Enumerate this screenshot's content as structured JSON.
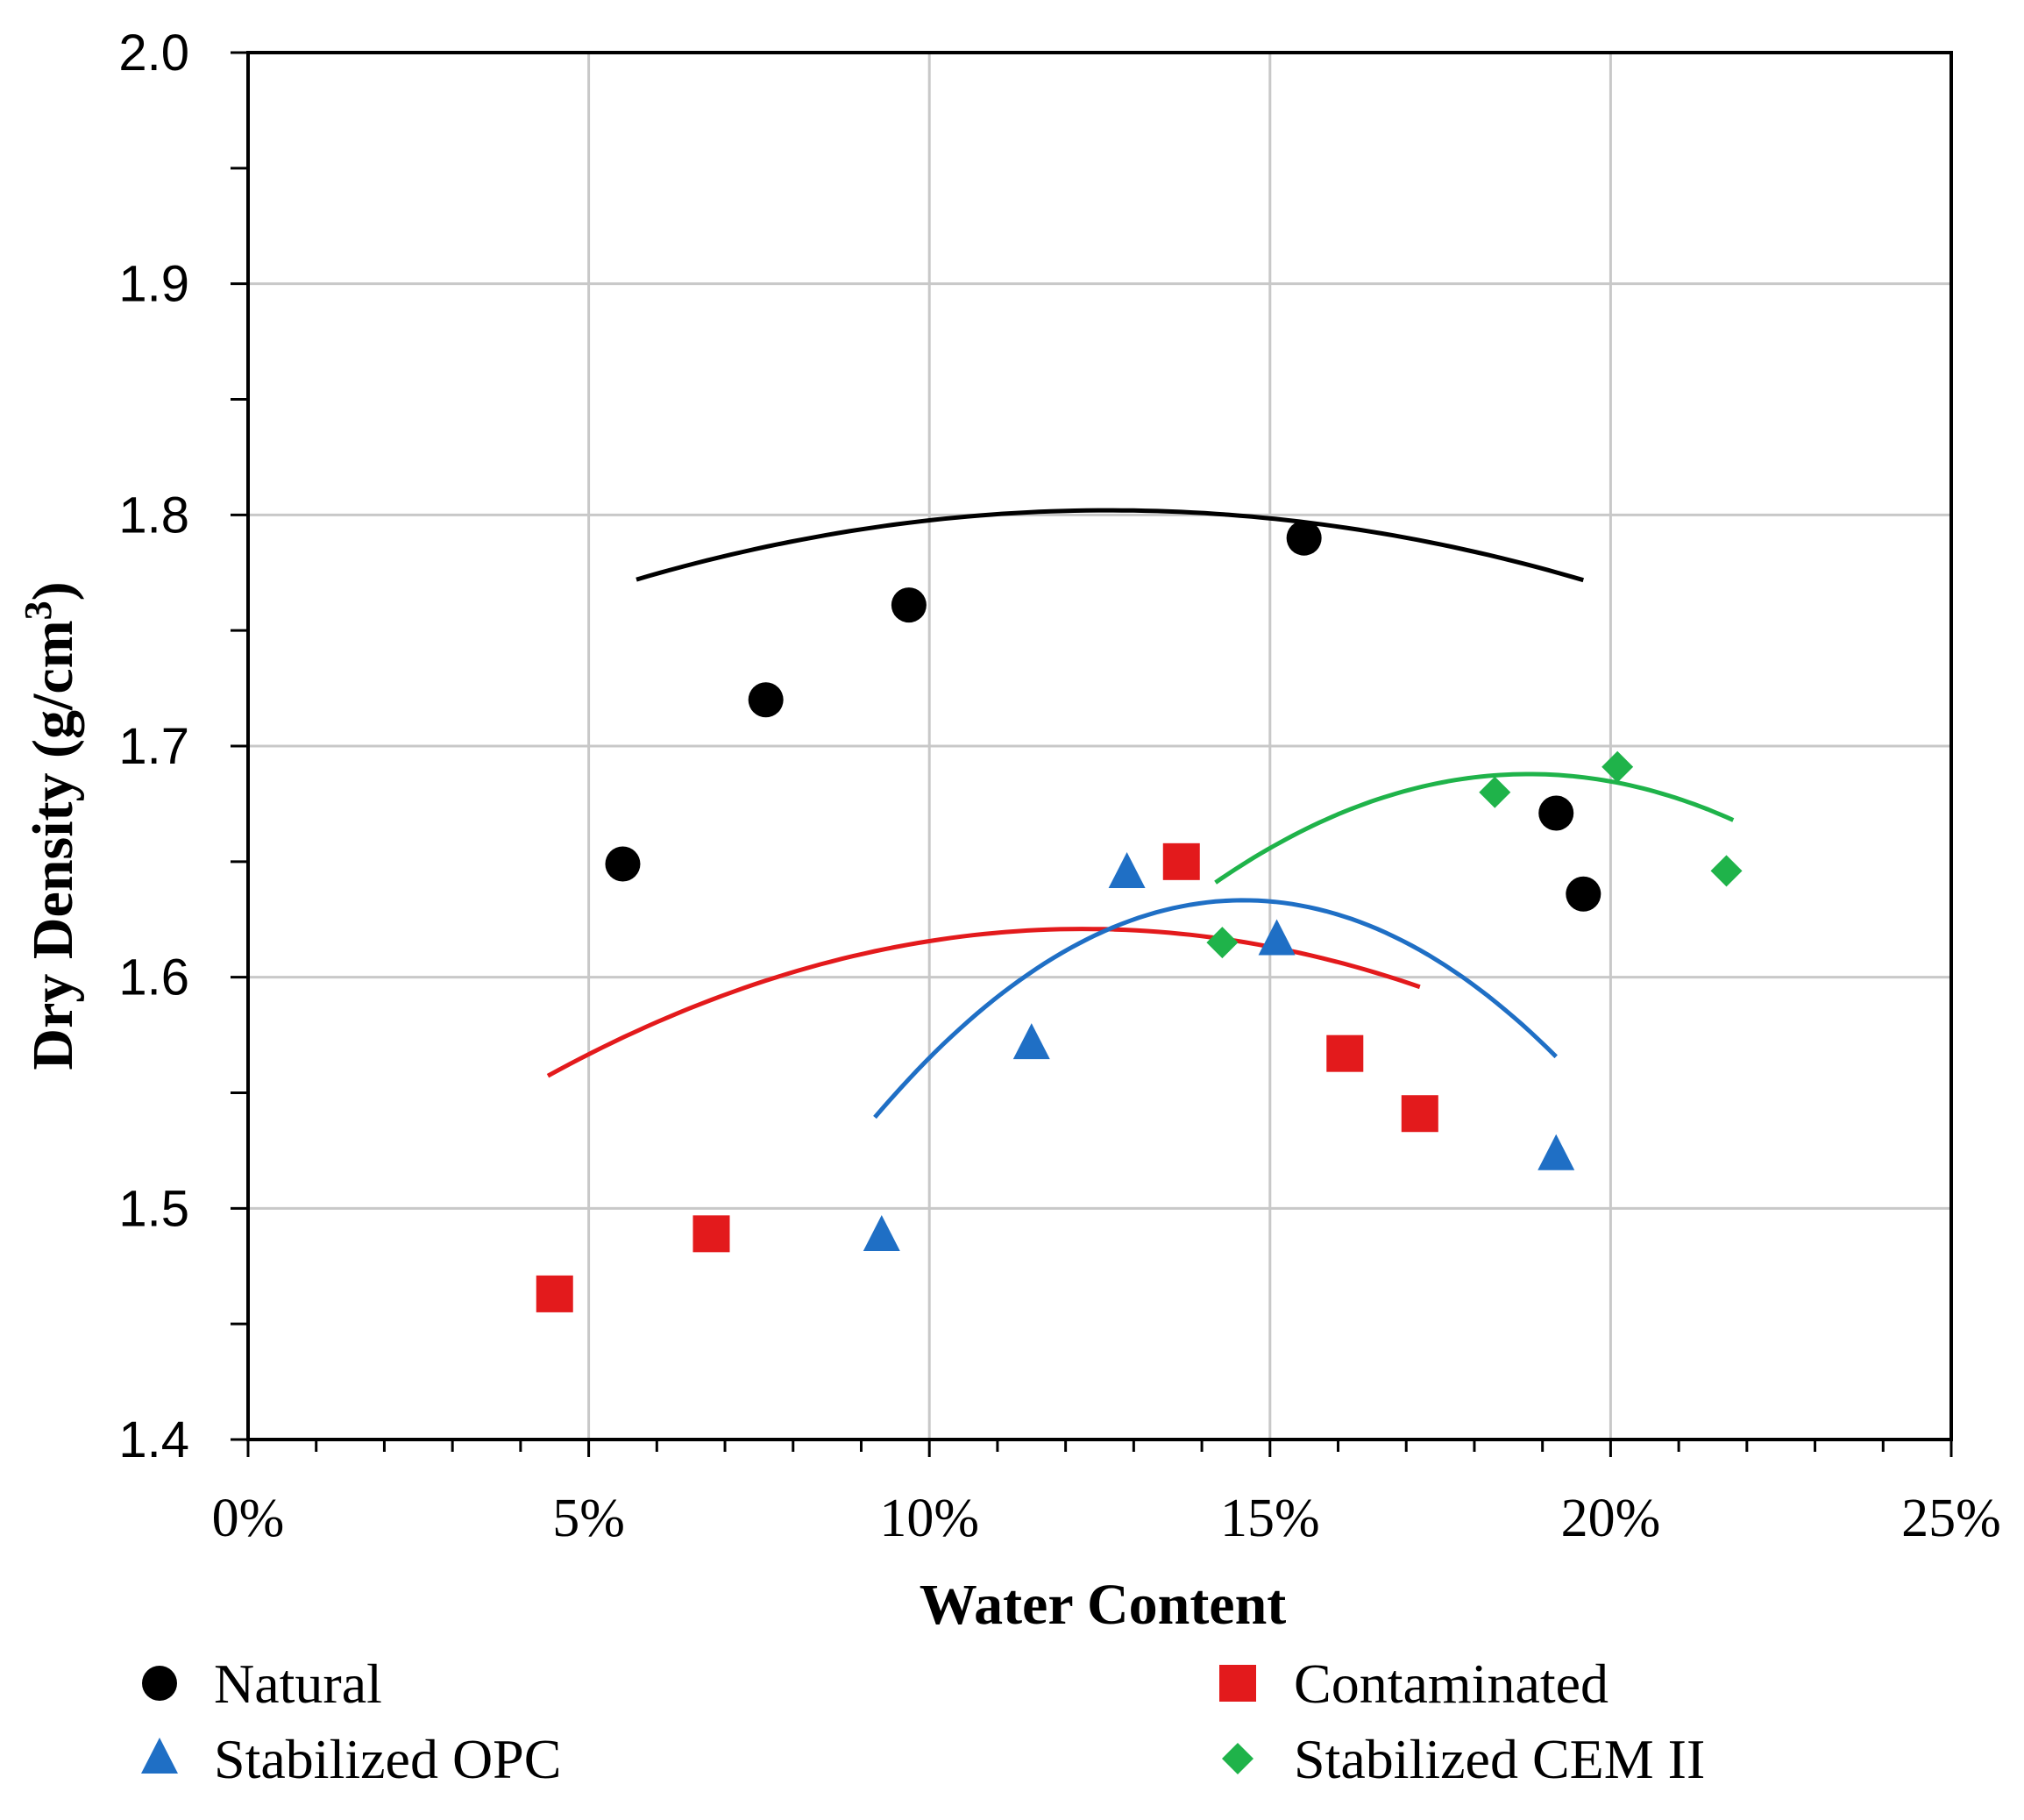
{
  "chart_data": {
    "type": "scatter",
    "xlabel": "Water Content",
    "ylabel": "Dry Density (g/cm",
    "ylabel_sup": "3",
    "ylabel_close": ")",
    "xlim": [
      0,
      0.25
    ],
    "ylim": [
      1.4,
      2.0
    ],
    "x_ticks": [
      0,
      0.05,
      0.1,
      0.15,
      0.2,
      0.25
    ],
    "x_tick_labels": [
      "0%",
      "5%",
      "10%",
      "15%",
      "20%",
      "25%"
    ],
    "y_ticks": [
      1.4,
      1.5,
      1.6,
      1.7,
      1.8,
      1.9,
      2.0
    ],
    "y_tick_labels": [
      "1.4",
      "1.5",
      "1.6",
      "1.7",
      "1.8",
      "1.9",
      "2.0"
    ],
    "grid": true,
    "legend_position": "bottom",
    "series": [
      {
        "name": "Natural",
        "marker": "circle",
        "color": "#000000",
        "x": [
          0.055,
          0.076,
          0.097,
          0.155,
          0.192,
          0.196
        ],
        "y": [
          1.649,
          1.72,
          1.761,
          1.79,
          1.671,
          1.636
        ],
        "fit": {
          "a": -6.225,
          "b": 1.5731,
          "c": 1.7026,
          "range": [
            0.057,
            0.196
          ]
        }
      },
      {
        "name": "Contaminated",
        "marker": "square",
        "color": "#e31a1c",
        "x": [
          0.045,
          0.068,
          0.137,
          0.161,
          0.172
        ],
        "y": [
          1.463,
          1.489,
          1.65,
          1.567,
          1.541
        ],
        "fit": {
          "a": -10.28,
          "b": 2.5212,
          "c": 1.4663,
          "range": [
            0.044,
            0.172
          ]
        }
      },
      {
        "name": "Stabilized OPC",
        "marker": "triangle",
        "color": "#1f6fc5",
        "x": [
          0.093,
          0.115,
          0.129,
          0.151,
          0.192
        ],
        "y": [
          1.488,
          1.571,
          1.645,
          1.616,
          1.523
        ],
        "fit": {
          "a": -32.1,
          "b": 9.379,
          "c": 0.9482,
          "range": [
            0.092,
            0.192
          ]
        }
      },
      {
        "name": "Stabilized CEM II",
        "marker": "diamond",
        "color": "#1fb34a",
        "x": [
          0.143,
          0.183,
          0.201,
          0.217
        ],
        "y": [
          1.615,
          1.68,
          1.691,
          1.646
        ],
        "fit": {
          "a": -22.17,
          "b": 8.3365,
          "c": 0.9042,
          "range": [
            0.142,
            0.218
          ]
        }
      }
    ]
  }
}
